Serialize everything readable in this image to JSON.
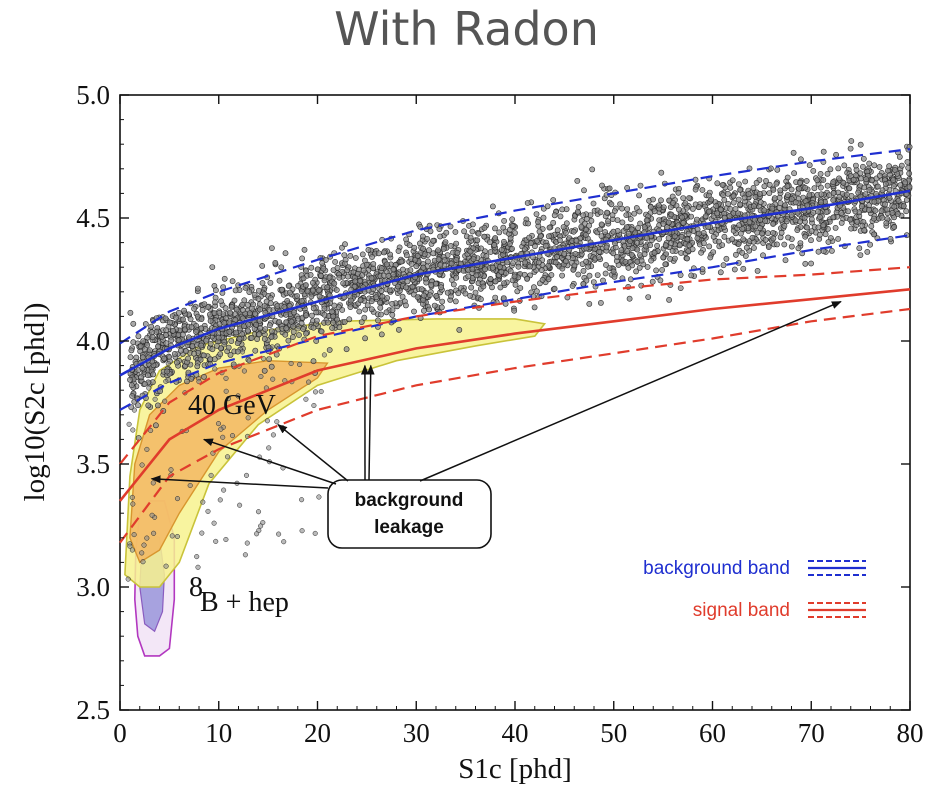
{
  "title": "With Radon",
  "chart_data": {
    "type": "scatter",
    "xlabel": "S1c [phd]",
    "ylabel": "log10(S2c [phd])",
    "xlim": [
      0,
      80
    ],
    "ylim": [
      2.5,
      5.0
    ],
    "x_ticks": [
      "0",
      "10",
      "20",
      "30",
      "40",
      "50",
      "60",
      "70",
      "80"
    ],
    "y_ticks": [
      "2.5",
      "3.0",
      "3.5",
      "4.0",
      "4.5",
      "5.0"
    ],
    "grid": false,
    "bands": {
      "background": {
        "color": "#1f2fd0",
        "median": [
          [
            0,
            3.86
          ],
          [
            5,
            3.97
          ],
          [
            10,
            4.05
          ],
          [
            20,
            4.16
          ],
          [
            30,
            4.27
          ],
          [
            40,
            4.34
          ],
          [
            50,
            4.41
          ],
          [
            60,
            4.48
          ],
          [
            70,
            4.54
          ],
          [
            80,
            4.61
          ]
        ],
        "upper": [
          [
            0,
            3.99
          ],
          [
            5,
            4.12
          ],
          [
            10,
            4.2
          ],
          [
            20,
            4.33
          ],
          [
            30,
            4.45
          ],
          [
            40,
            4.53
          ],
          [
            50,
            4.6
          ],
          [
            60,
            4.67
          ],
          [
            70,
            4.73
          ],
          [
            80,
            4.78
          ]
        ],
        "lower": [
          [
            0,
            3.72
          ],
          [
            5,
            3.83
          ],
          [
            10,
            3.91
          ],
          [
            20,
            4.01
          ],
          [
            30,
            4.1
          ],
          [
            40,
            4.17
          ],
          [
            50,
            4.24
          ],
          [
            60,
            4.3
          ],
          [
            70,
            4.37
          ],
          [
            80,
            4.43
          ]
        ]
      },
      "signal": {
        "color": "#e03c2c",
        "median": [
          [
            0,
            3.35
          ],
          [
            5,
            3.6
          ],
          [
            10,
            3.72
          ],
          [
            20,
            3.88
          ],
          [
            30,
            3.97
          ],
          [
            40,
            4.03
          ],
          [
            50,
            4.08
          ],
          [
            60,
            4.13
          ],
          [
            70,
            4.17
          ],
          [
            80,
            4.21
          ]
        ],
        "upper": [
          [
            0,
            3.5
          ],
          [
            5,
            3.75
          ],
          [
            10,
            3.87
          ],
          [
            20,
            4.02
          ],
          [
            30,
            4.1
          ],
          [
            40,
            4.16
          ],
          [
            50,
            4.21
          ],
          [
            60,
            4.25
          ],
          [
            70,
            4.27
          ],
          [
            80,
            4.3
          ]
        ],
        "lower": [
          [
            0,
            3.18
          ],
          [
            5,
            3.45
          ],
          [
            10,
            3.56
          ],
          [
            20,
            3.72
          ],
          [
            30,
            3.82
          ],
          [
            40,
            3.89
          ],
          [
            50,
            3.95
          ],
          [
            60,
            4.01
          ],
          [
            70,
            4.08
          ],
          [
            80,
            4.13
          ]
        ]
      }
    },
    "contours": {
      "wimp_40gev_outer": [
        [
          0.5,
          3.05
        ],
        [
          1,
          3.45
        ],
        [
          2,
          3.72
        ],
        [
          4,
          3.88
        ],
        [
          8,
          3.98
        ],
        [
          14,
          4.04
        ],
        [
          22,
          4.08
        ],
        [
          32,
          4.09
        ],
        [
          40,
          4.09
        ],
        [
          43,
          4.07
        ],
        [
          42,
          4.02
        ],
        [
          36,
          3.98
        ],
        [
          28,
          3.92
        ],
        [
          20,
          3.82
        ],
        [
          14,
          3.66
        ],
        [
          9,
          3.42
        ],
        [
          6,
          3.1
        ],
        [
          4,
          3.0
        ],
        [
          2,
          3.0
        ],
        [
          0.5,
          3.05
        ]
      ],
      "wimp_40gev_inner": [
        [
          1,
          3.2
        ],
        [
          1.5,
          3.5
        ],
        [
          3,
          3.7
        ],
        [
          6,
          3.82
        ],
        [
          10,
          3.89
        ],
        [
          15,
          3.92
        ],
        [
          21,
          3.91
        ],
        [
          20,
          3.85
        ],
        [
          15,
          3.72
        ],
        [
          10,
          3.55
        ],
        [
          6,
          3.3
        ],
        [
          4,
          3.15
        ],
        [
          2,
          3.1
        ],
        [
          1,
          3.2
        ]
      ],
      "b8_hep_outer": [
        [
          1.5,
          2.95
        ],
        [
          1.6,
          3.15
        ],
        [
          2,
          3.3
        ],
        [
          3,
          3.35
        ],
        [
          4.5,
          3.35
        ],
        [
          5.5,
          3.2
        ],
        [
          5.5,
          2.95
        ],
        [
          5,
          2.75
        ],
        [
          4,
          2.72
        ],
        [
          2.5,
          2.72
        ],
        [
          1.8,
          2.8
        ],
        [
          1.5,
          2.95
        ]
      ],
      "b8_hep_inner": [
        [
          2,
          3.0
        ],
        [
          2.2,
          3.15
        ],
        [
          3,
          3.22
        ],
        [
          4,
          3.2
        ],
        [
          4.5,
          3.05
        ],
        [
          4.3,
          2.9
        ],
        [
          3.5,
          2.82
        ],
        [
          2.5,
          2.85
        ],
        [
          2,
          3.0
        ]
      ]
    },
    "annotations": {
      "wimp_label": "40 GeV",
      "b8_superscript": "8",
      "b8_label": "B + hep",
      "leakage_line1": "background",
      "leakage_line2": "leakage"
    },
    "legend": {
      "placement": "lower-right",
      "entries": [
        {
          "label": "background band",
          "color": "#1f2fd0"
        },
        {
          "label": "signal band",
          "color": "#e03c2c"
        }
      ]
    },
    "scatter_points_approx_count": 3000
  }
}
